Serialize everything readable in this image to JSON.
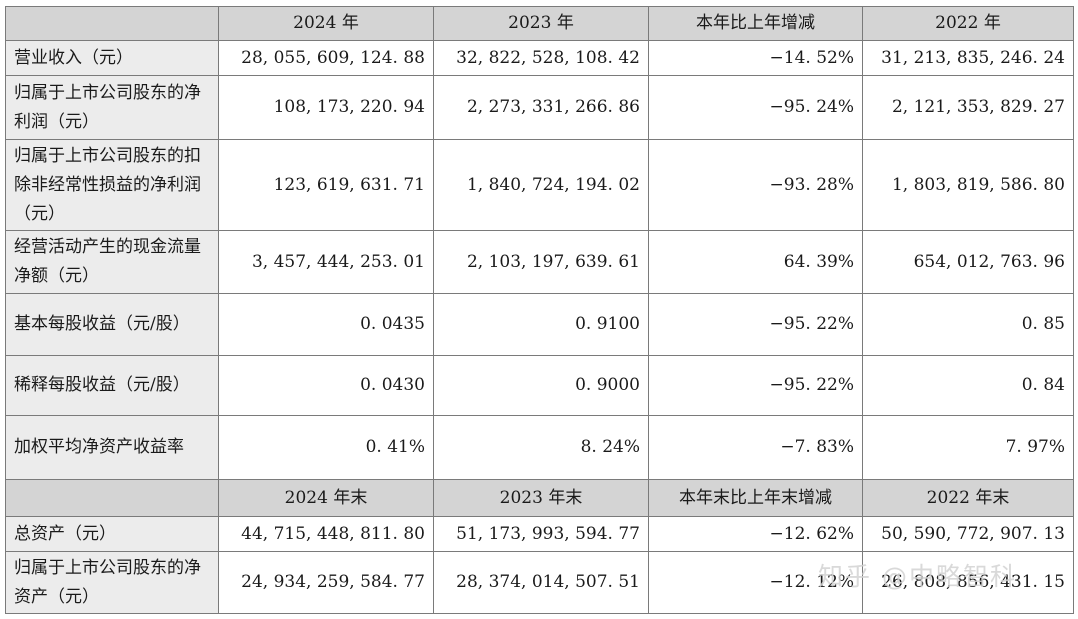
{
  "header1": [
    "",
    "2024 年",
    "2023 年",
    "本年比上年增减",
    "2022 年"
  ],
  "rows1": [
    {
      "label": "营业收入（元）",
      "v2024": "28, 055, 609, 124. 88",
      "v2023": "32, 822, 528, 108. 42",
      "change": "−14. 52%",
      "v2022": "31, 213, 835, 246. 24"
    },
    {
      "label": "归属于上市公司股东的净利润（元）",
      "v2024": "108, 173, 220. 94",
      "v2023": "2, 273, 331, 266. 86",
      "change": "−95. 24%",
      "v2022": "2, 121, 353, 829. 27"
    },
    {
      "label": "归属于上市公司股东的扣除非经常性损益的净利润（元）",
      "v2024": "123, 619, 631. 71",
      "v2023": "1, 840, 724, 194. 02",
      "change": "−93. 28%",
      "v2022": "1, 803, 819, 586. 80"
    },
    {
      "label": "经营活动产生的现金流量净额（元）",
      "v2024": "3, 457, 444, 253. 01",
      "v2023": "2, 103, 197, 639. 61",
      "change": "64. 39%",
      "v2022": "654, 012, 763. 96"
    },
    {
      "label": "基本每股收益（元/股）",
      "v2024": "0. 0435",
      "v2023": "0. 9100",
      "change": "−95. 22%",
      "v2022": "0. 85"
    },
    {
      "label": "稀释每股收益（元/股）",
      "v2024": "0. 0430",
      "v2023": "0. 9000",
      "change": "−95. 22%",
      "v2022": "0. 84"
    },
    {
      "label": "加权平均净资产收益率",
      "v2024": "0. 41%",
      "v2023": "8. 24%",
      "change": "−7. 83%",
      "v2022": "7. 97%"
    }
  ],
  "header2": [
    "",
    "2024 年末",
    "2023 年末",
    "本年末比上年末增减",
    "2022 年末"
  ],
  "rows2": [
    {
      "label": "总资产（元）",
      "v2024": "44, 715, 448, 811. 80",
      "v2023": "51, 173, 993, 594. 77",
      "change": "−12. 62%",
      "v2022": "50, 590, 772, 907. 13"
    },
    {
      "label": "归属于上市公司股东的净资产（元）",
      "v2024": "24, 934, 259, 584. 77",
      "v2023": "28, 374, 014, 507. 51",
      "change": "−12. 12%",
      "v2022": "26, 808, 856, 431. 15"
    }
  ],
  "watermark": "知乎 @中略智科"
}
